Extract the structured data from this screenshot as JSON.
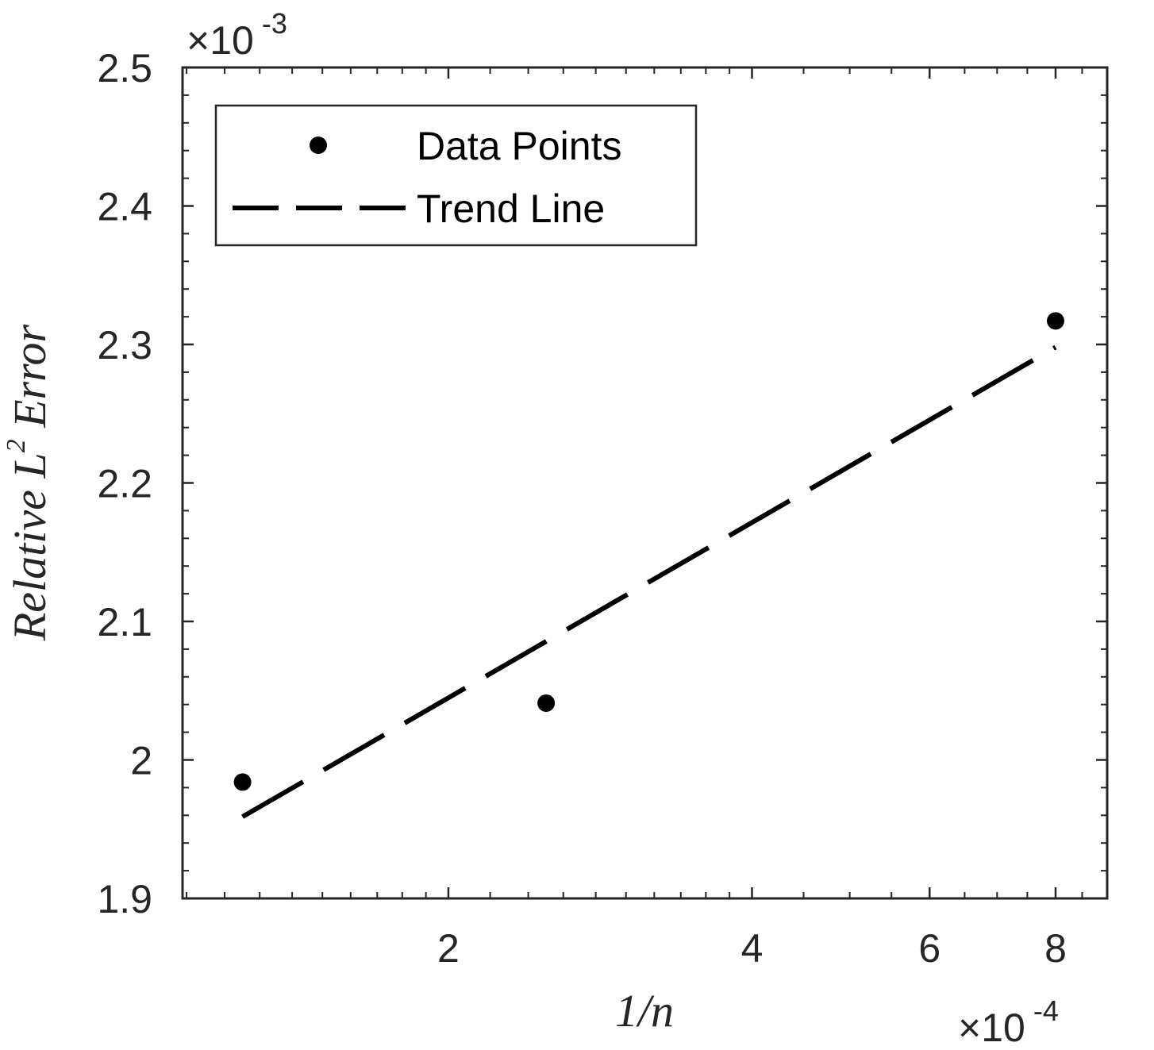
{
  "chart_data": {
    "type": "scatter",
    "x_scale": "log",
    "y_scale": "linear",
    "x_multiplier_label": {
      "base": "×10",
      "exponent": "-4"
    },
    "y_multiplier_label": {
      "base": "×10",
      "exponent": "-3"
    },
    "xlabel": {
      "text": "1/n"
    },
    "ylabel": {
      "prefix": "Relative L",
      "superscript": "2",
      "suffix": " Error"
    },
    "xlim": [
      1.09,
      9.0
    ],
    "ylim": [
      1.9,
      2.5
    ],
    "x_major_ticks": [
      2,
      4,
      6,
      8
    ],
    "x_tick_labels": [
      "2",
      "4",
      "6",
      "8"
    ],
    "y_major_ticks": [
      1.9,
      2.0,
      2.1,
      2.2,
      2.3,
      2.4,
      2.5
    ],
    "y_tick_labels": [
      "1.9",
      "2",
      "2.1",
      "2.2",
      "2.3",
      "2.4",
      "2.5"
    ],
    "series": [
      {
        "name": "Data Points",
        "kind": "scatter",
        "color": "#000000",
        "points": [
          {
            "x": 1.25,
            "y": 1.984
          },
          {
            "x": 2.5,
            "y": 2.041
          },
          {
            "x": 8.0,
            "y": 2.317
          }
        ]
      },
      {
        "name": "Trend Line",
        "kind": "dashed-line",
        "color": "#000000",
        "points": [
          {
            "x": 1.25,
            "y": 1.959
          },
          {
            "x": 8.0,
            "y": 2.298
          }
        ]
      }
    ],
    "legend_position": "top-left",
    "grid": false
  }
}
